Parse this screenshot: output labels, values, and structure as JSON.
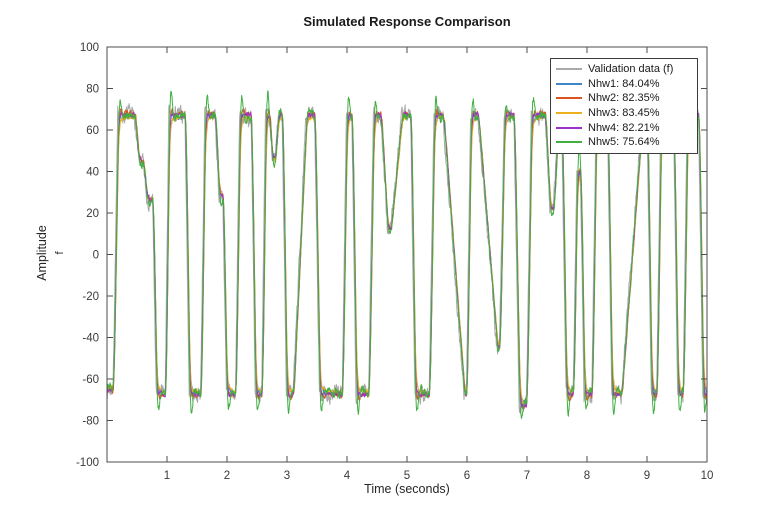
{
  "chart_data": {
    "type": "line",
    "title": "Simulated Response Comparison",
    "xlabel": "Time (seconds)",
    "ylabel": "Amplitude",
    "ylabel_sub": "f",
    "xlim": [
      0,
      10
    ],
    "ylim": [
      -100,
      100
    ],
    "xticks": [
      1,
      2,
      3,
      4,
      5,
      6,
      7,
      8,
      9,
      10
    ],
    "yticks": [
      -100,
      -80,
      -60,
      -40,
      -20,
      0,
      20,
      40,
      60,
      80,
      100
    ],
    "grid": false,
    "legend_position": "top-right",
    "axis_color": "#4d4d4d",
    "label_color": "#3a3a3a",
    "signal_levels": {
      "high": 67,
      "low": -67
    },
    "base_waveform": [
      [
        0.0,
        -65
      ],
      [
        0.1,
        -65
      ],
      [
        0.18,
        67
      ],
      [
        0.46,
        67
      ],
      [
        0.52,
        46
      ],
      [
        0.6,
        44
      ],
      [
        0.66,
        27
      ],
      [
        0.76,
        26
      ],
      [
        0.82,
        -67
      ],
      [
        0.97,
        -67
      ],
      [
        1.03,
        67
      ],
      [
        1.3,
        67
      ],
      [
        1.37,
        -67
      ],
      [
        1.56,
        -67
      ],
      [
        1.63,
        67
      ],
      [
        1.8,
        67
      ],
      [
        1.86,
        29
      ],
      [
        1.93,
        28
      ],
      [
        1.99,
        -67
      ],
      [
        2.14,
        -67
      ],
      [
        2.21,
        67
      ],
      [
        2.4,
        67
      ],
      [
        2.47,
        -67
      ],
      [
        2.58,
        -67
      ],
      [
        2.64,
        67
      ],
      [
        2.7,
        67
      ],
      [
        2.75,
        46
      ],
      [
        2.8,
        46
      ],
      [
        2.85,
        67
      ],
      [
        2.92,
        67
      ],
      [
        2.99,
        -67
      ],
      [
        3.1,
        -67
      ],
      [
        3.32,
        67
      ],
      [
        3.46,
        67
      ],
      [
        3.54,
        -67
      ],
      [
        3.92,
        -67
      ],
      [
        3.99,
        67
      ],
      [
        4.08,
        67
      ],
      [
        4.15,
        -67
      ],
      [
        4.36,
        -67
      ],
      [
        4.44,
        67
      ],
      [
        4.56,
        67
      ],
      [
        4.67,
        13
      ],
      [
        4.73,
        13
      ],
      [
        4.91,
        67
      ],
      [
        5.06,
        67
      ],
      [
        5.13,
        -67
      ],
      [
        5.37,
        -67
      ],
      [
        5.45,
        67
      ],
      [
        5.6,
        67
      ],
      [
        5.95,
        -67
      ],
      [
        5.99,
        -67
      ],
      [
        6.06,
        67
      ],
      [
        6.18,
        67
      ],
      [
        6.5,
        -45
      ],
      [
        6.54,
        -45
      ],
      [
        6.62,
        67
      ],
      [
        6.78,
        67
      ],
      [
        6.87,
        -72
      ],
      [
        6.99,
        -72
      ],
      [
        7.07,
        67
      ],
      [
        7.3,
        67
      ],
      [
        7.38,
        22
      ],
      [
        7.44,
        22
      ],
      [
        7.51,
        62
      ],
      [
        7.58,
        62
      ],
      [
        7.65,
        -67
      ],
      [
        7.77,
        -67
      ],
      [
        7.83,
        40
      ],
      [
        7.89,
        40
      ],
      [
        7.95,
        -67
      ],
      [
        8.08,
        -67
      ],
      [
        8.15,
        67
      ],
      [
        8.34,
        67
      ],
      [
        8.41,
        -67
      ],
      [
        8.57,
        -67
      ],
      [
        8.92,
        67
      ],
      [
        9.0,
        67
      ],
      [
        9.07,
        -67
      ],
      [
        9.16,
        -67
      ],
      [
        9.23,
        67
      ],
      [
        9.44,
        67
      ],
      [
        9.51,
        -67
      ],
      [
        9.6,
        -67
      ],
      [
        9.67,
        67
      ],
      [
        9.86,
        67
      ],
      [
        9.93,
        -67
      ],
      [
        10.0,
        -67
      ]
    ],
    "series": [
      {
        "name": "Validation data (f)",
        "color": "#a9a9a9",
        "role": "validation",
        "noise": 3.0,
        "wn": 120,
        "zeta": 1.0,
        "gain": 1.0,
        "seed": 7
      },
      {
        "name": "Nhw1: 84.04%",
        "fit": "84.04%",
        "color": "#3f87c9",
        "noise": 0.7,
        "wn": 80,
        "zeta": 0.9,
        "gain": 0.99,
        "seed": 21
      },
      {
        "name": "Nhw2: 82.35%",
        "fit": "82.35%",
        "color": "#d9541e",
        "noise": 1.1,
        "wn": 60,
        "zeta": 0.7,
        "gain": 1.01,
        "seed": 33
      },
      {
        "name": "Nhw3: 83.45%",
        "fit": "83.45%",
        "color": "#edb120",
        "noise": 0.9,
        "wn": 68,
        "zeta": 0.85,
        "gain": 0.985,
        "seed": 45
      },
      {
        "name": "Nhw4: 82.21%",
        "fit": "82.21%",
        "color": "#9a33cc",
        "noise": 0.9,
        "wn": 75,
        "zeta": 0.75,
        "gain": 1.005,
        "seed": 57
      },
      {
        "name": "Nhw5: 75.64%",
        "fit": "75.64%",
        "color": "#41af41",
        "noise": 1.6,
        "wn": 55,
        "zeta": 0.5,
        "gain": 0.995,
        "seed": 69
      }
    ]
  }
}
